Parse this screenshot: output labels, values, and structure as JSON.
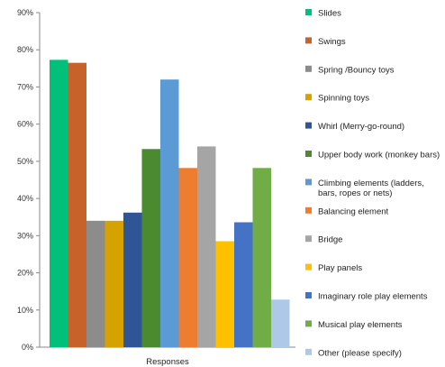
{
  "chart_data": {
    "type": "bar",
    "title": "",
    "xlabel": "Responses",
    "ylabel": "",
    "ylim": [
      0,
      90
    ],
    "y_ticks": [
      0,
      10,
      20,
      30,
      40,
      50,
      60,
      70,
      80,
      90
    ],
    "y_tick_suffix": "%",
    "grid": false,
    "legend_position": "right",
    "categories": [
      "Responses"
    ],
    "series": [
      {
        "name": "Slides",
        "values": [
          77.3
        ],
        "color": "#00c07a"
      },
      {
        "name": "Swings",
        "values": [
          76.5
        ],
        "color": "#c8622b"
      },
      {
        "name": "Spring /Bouncy toys",
        "values": [
          34.0
        ],
        "color": "#8c8c8c"
      },
      {
        "name": "Spinning toys",
        "values": [
          34.0
        ],
        "color": "#d6a200"
      },
      {
        "name": "Whirl (Merry-go-round)",
        "values": [
          36.2
        ],
        "color": "#2f5597"
      },
      {
        "name": "Upper body work (monkey bars)",
        "values": [
          53.3
        ],
        "color": "#4b8a2e"
      },
      {
        "name": "Climbing elements (ladders, bars, ropes or nets)",
        "values": [
          72.0
        ],
        "color": "#5a9bd5"
      },
      {
        "name": "Balancing element",
        "values": [
          48.2
        ],
        "color": "#ed7d31"
      },
      {
        "name": "Bridge",
        "values": [
          54.0
        ],
        "color": "#a5a5a5"
      },
      {
        "name": "Play panels",
        "values": [
          28.5
        ],
        "color": "#ffc000"
      },
      {
        "name": "Imaginary role play elements",
        "values": [
          33.6
        ],
        "color": "#4472c4"
      },
      {
        "name": "Musical play elements",
        "values": [
          48.2
        ],
        "color": "#70ad47"
      },
      {
        "name": "Other (please specify)",
        "values": [
          12.8
        ],
        "color": "#aec8e8"
      }
    ]
  }
}
